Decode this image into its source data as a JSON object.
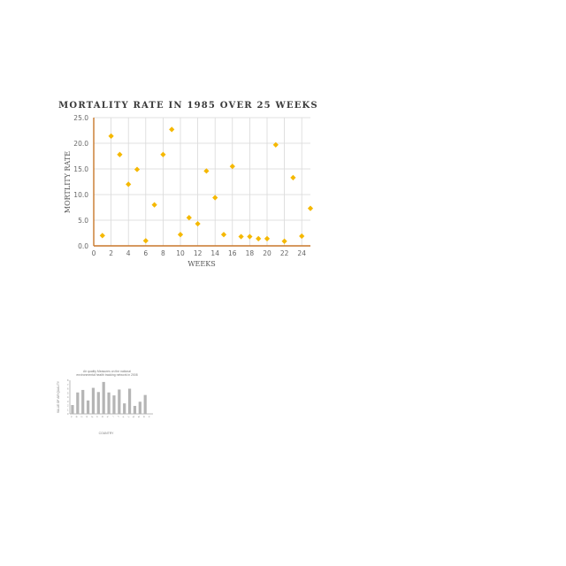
{
  "chart_data": [
    {
      "type": "scatter",
      "title": "MORTALITY RATE IN 1985 OVER 25 WEEKS",
      "xlabel": "WEEKS",
      "ylabel": "MORTLITY  RATE",
      "xlim": [
        0,
        25
      ],
      "ylim": [
        0,
        25
      ],
      "xticks": [
        "0",
        "2",
        "4",
        "6",
        "8",
        "10",
        "12",
        "14",
        "16",
        "18",
        "20",
        "22",
        "24"
      ],
      "yticks": [
        "0.0",
        "5.0",
        "10.0",
        "15.0",
        "20.0",
        "25.0"
      ],
      "grid": true,
      "marker": "diamond",
      "colors": {
        "marker": "#f5b800",
        "axis": "#c8772a",
        "grid": "#d9d9d9"
      },
      "series": [
        {
          "x": [
            1,
            2,
            3,
            4,
            5,
            6,
            7,
            8,
            9,
            10,
            11,
            12,
            13,
            14,
            15,
            16,
            17,
            18,
            19,
            20,
            21,
            22,
            23,
            24,
            25
          ],
          "y": [
            2.0,
            21.4,
            17.8,
            12.0,
            14.9,
            1.0,
            8.0,
            17.8,
            22.7,
            2.2,
            5.5,
            4.3,
            14.6,
            9.4,
            2.2,
            15.5,
            1.8,
            1.8,
            1.4,
            1.4,
            19.7,
            0.9,
            13.3,
            1.9,
            7.3
          ]
        }
      ]
    },
    {
      "type": "bar",
      "title": "Air quality Measures on the national environmental health tracking network in 2008",
      "xlabel": "COUNTRY",
      "ylabel": "VALUE OF AIR QUALITY",
      "ylim": [
        0,
        8
      ],
      "yticks": [
        "0",
        "1",
        "2",
        "3",
        "4",
        "5",
        "6",
        "7",
        "8"
      ],
      "categories": [
        "A",
        "B",
        "C",
        "D",
        "E",
        "F",
        "G",
        "H",
        "I",
        "J",
        "K",
        "L",
        "M",
        "N",
        "O",
        "P"
      ],
      "values": [
        2.1,
        5.1,
        5.7,
        3.2,
        6.2,
        5.2,
        7.6,
        5.1,
        4.4,
        5.8,
        2.5,
        6.0,
        1.9,
        2.9,
        4.5,
        0
      ],
      "colors": {
        "bar": "#b5b5b5",
        "axis": "#777777"
      }
    }
  ]
}
